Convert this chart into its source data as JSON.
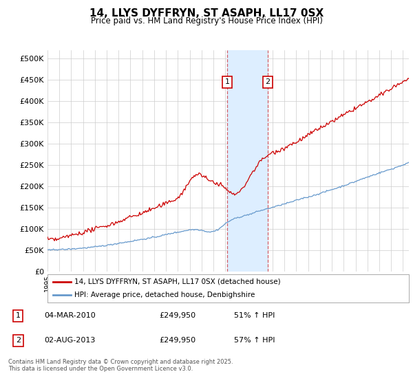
{
  "title": "14, LLYS DYFFRYN, ST ASAPH, LL17 0SX",
  "subtitle": "Price paid vs. HM Land Registry's House Price Index (HPI)",
  "ylabel_ticks": [
    "£0",
    "£50K",
    "£100K",
    "£150K",
    "£200K",
    "£250K",
    "£300K",
    "£350K",
    "£400K",
    "£450K",
    "£500K"
  ],
  "ytick_values": [
    0,
    50000,
    100000,
    150000,
    200000,
    250000,
    300000,
    350000,
    400000,
    450000,
    500000
  ],
  "ylim": [
    0,
    520000
  ],
  "xlim_start": 1995.0,
  "xlim_end": 2025.5,
  "red_line_color": "#cc0000",
  "blue_line_color": "#6699cc",
  "highlight_fill": "#ddeeff",
  "marker1_date": 2010.17,
  "marker2_date": 2013.58,
  "sale1_info": "04-MAR-2010",
  "sale1_price": "£249,950",
  "sale1_hpi": "51% ↑ HPI",
  "sale2_info": "02-AUG-2013",
  "sale2_price": "£249,950",
  "sale2_hpi": "57% ↑ HPI",
  "legend1_label": "14, LLYS DYFFRYN, ST ASAPH, LL17 0SX (detached house)",
  "legend2_label": "HPI: Average price, detached house, Denbighshire",
  "footer": "Contains HM Land Registry data © Crown copyright and database right 2025.\nThis data is licensed under the Open Government Licence v3.0.",
  "background_color": "#ffffff",
  "grid_color": "#cccccc"
}
